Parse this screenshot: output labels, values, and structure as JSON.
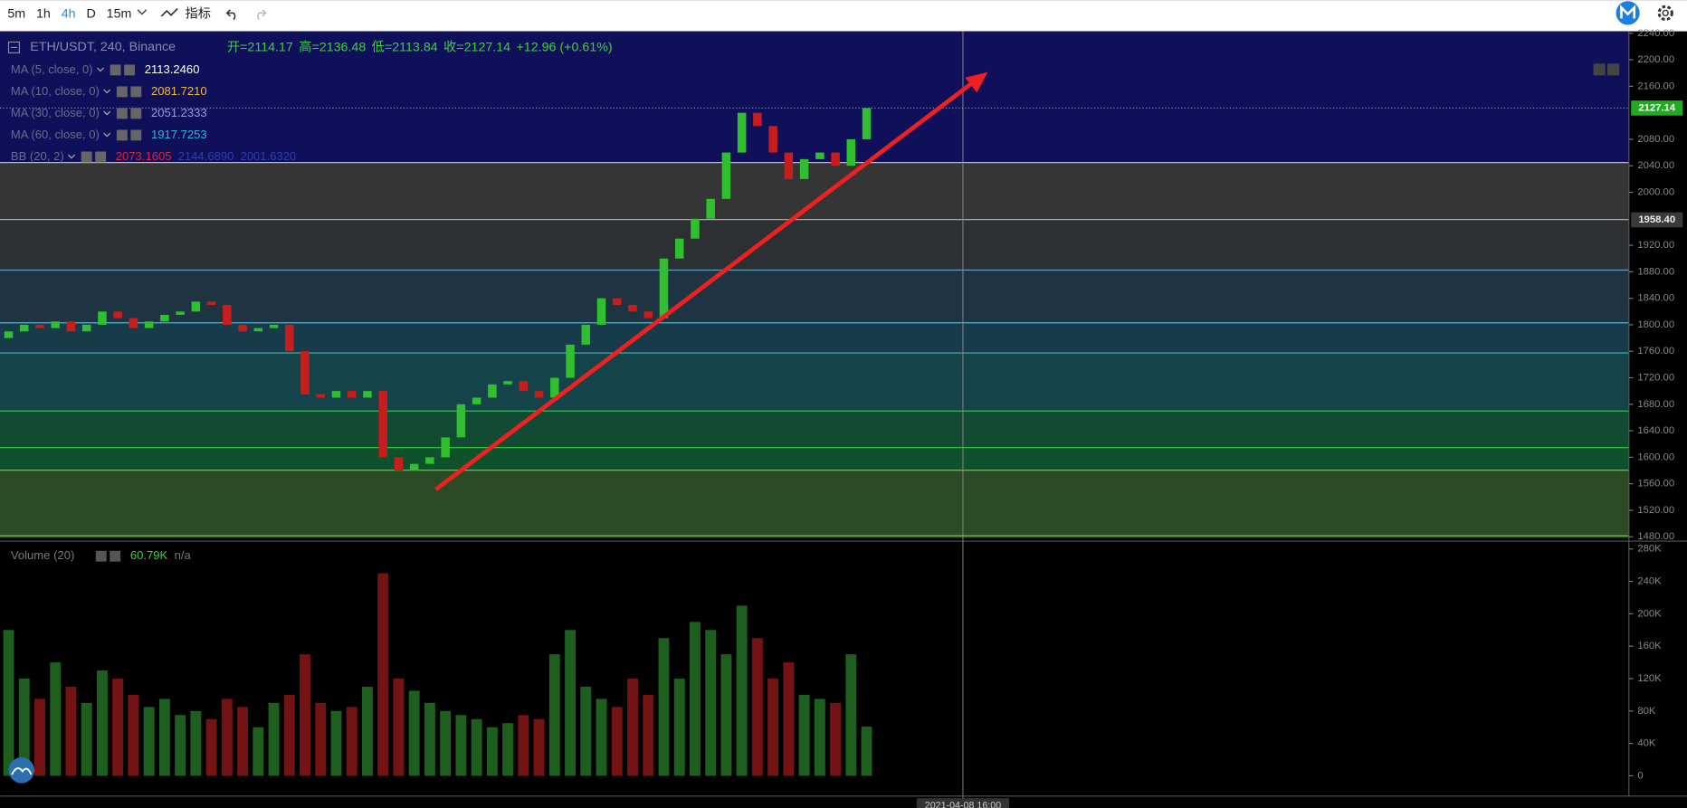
{
  "toolbar": {
    "intervals": [
      "5m",
      "1h",
      "4h",
      "D",
      "15m"
    ],
    "active_interval": "4h",
    "indicators_button": "指标"
  },
  "legend": {
    "symbol": "ETH/USDT, 240, Binance",
    "open": "开=2114.17",
    "high": "高=2136.48",
    "low": "低=2113.84",
    "close": "收=2127.14",
    "change": "+12.96 (+0.61%)"
  },
  "indicators": [
    {
      "name": "MA (5, close, 0)",
      "values": [
        "2113.2460"
      ],
      "colors": [
        "#ffffff"
      ]
    },
    {
      "name": "MA (10, close, 0)",
      "values": [
        "2081.7210"
      ],
      "colors": [
        "#f0b840"
      ]
    },
    {
      "name": "MA (30, close, 0)",
      "values": [
        "2051.2333"
      ],
      "colors": [
        "#9a9ad8"
      ]
    },
    {
      "name": "MA (60, close, 0)",
      "values": [
        "1917.7253"
      ],
      "colors": [
        "#2ab8d0"
      ]
    },
    {
      "name": "BB (20, 2)",
      "values": [
        "2073.1605",
        "2144.6890",
        "2001.6320"
      ],
      "colors": [
        "#e0262e",
        "#2b3fae",
        "#2b3fae"
      ]
    }
  ],
  "price_chart": {
    "type": "candlestick",
    "ylim": [
      1475,
      2243
    ],
    "yticks": [
      {
        "value": 2240,
        "label": "2240.00"
      },
      {
        "value": 2200,
        "label": "2200.00"
      },
      {
        "value": 2160,
        "label": "2160.00"
      },
      {
        "value": 2080,
        "label": "2080.00"
      },
      {
        "value": 2040,
        "label": "2040.00"
      },
      {
        "value": 2000,
        "label": "2000.00"
      },
      {
        "value": 1920,
        "label": "1920.00"
      },
      {
        "value": 1880,
        "label": "1880.00"
      },
      {
        "value": 1840,
        "label": "1840.00"
      },
      {
        "value": 1800,
        "label": "1800.00"
      },
      {
        "value": 1760,
        "label": "1760.00"
      },
      {
        "value": 1720,
        "label": "1720.00"
      },
      {
        "value": 1680,
        "label": "1680.00"
      },
      {
        "value": 1640,
        "label": "1640.00"
      },
      {
        "value": 1600,
        "label": "1600.00"
      },
      {
        "value": 1560,
        "label": "1560.00"
      },
      {
        "value": 1520,
        "label": "1520.00"
      },
      {
        "value": 1480,
        "label": "1480.00"
      }
    ],
    "first_open": 1780,
    "close": [
      1790,
      1800,
      1795,
      1805,
      1790,
      1800,
      1820,
      1810,
      1795,
      1805,
      1815,
      1820,
      1835,
      1830,
      1800,
      1790,
      1795,
      1800,
      1760,
      1695,
      1690,
      1700,
      1690,
      1700,
      1600,
      1580,
      1590,
      1600,
      1630,
      1680,
      1690,
      1710,
      1715,
      1700,
      1690,
      1720,
      1770,
      1800,
      1840,
      1830,
      1820,
      1810,
      1900,
      1930,
      1960,
      1990,
      2060,
      2120,
      2100,
      2060,
      2020,
      2050,
      2060,
      2040,
      2080,
      2127.14
    ],
    "up_color": "#2fbf2f",
    "down_color": "#c81d1d",
    "last_price": {
      "value": 2127.14,
      "label": "2127.14"
    },
    "level_price": {
      "value": 1958.4,
      "label": "1958.40"
    }
  },
  "volume_chart": {
    "type": "bar",
    "name": "Volume (20)",
    "legend_value": "60.79K",
    "legend_extra": "n/a",
    "ylim": [
      -25000,
      287000
    ],
    "yticks": [
      {
        "value": 280000,
        "label": "280K"
      },
      {
        "value": 240000,
        "label": "240K"
      },
      {
        "value": 200000,
        "label": "200K"
      },
      {
        "value": 160000,
        "label": "160K"
      },
      {
        "value": 120000,
        "label": "120K"
      },
      {
        "value": 80000,
        "label": "80K"
      },
      {
        "value": 40000,
        "label": "40K"
      },
      0
    ],
    "values": [
      180000,
      120000,
      95000,
      140000,
      110000,
      90000,
      130000,
      120000,
      100000,
      85000,
      95000,
      75000,
      80000,
      70000,
      95000,
      85000,
      60000,
      90000,
      100000,
      150000,
      90000,
      80000,
      85000,
      110000,
      250000,
      120000,
      105000,
      90000,
      80000,
      75000,
      70000,
      60000,
      65000,
      75000,
      70000,
      150000,
      180000,
      110000,
      95000,
      85000,
      120000,
      100000,
      170000,
      120000,
      190000,
      180000,
      150000,
      210000,
      170000,
      120000,
      140000,
      100000,
      95000,
      90000,
      150000,
      60790
    ],
    "up_color": "#1e5e1e",
    "down_color": "#731313"
  },
  "time_axis": {
    "crosshair_label": "2021-04-08 16:00"
  }
}
